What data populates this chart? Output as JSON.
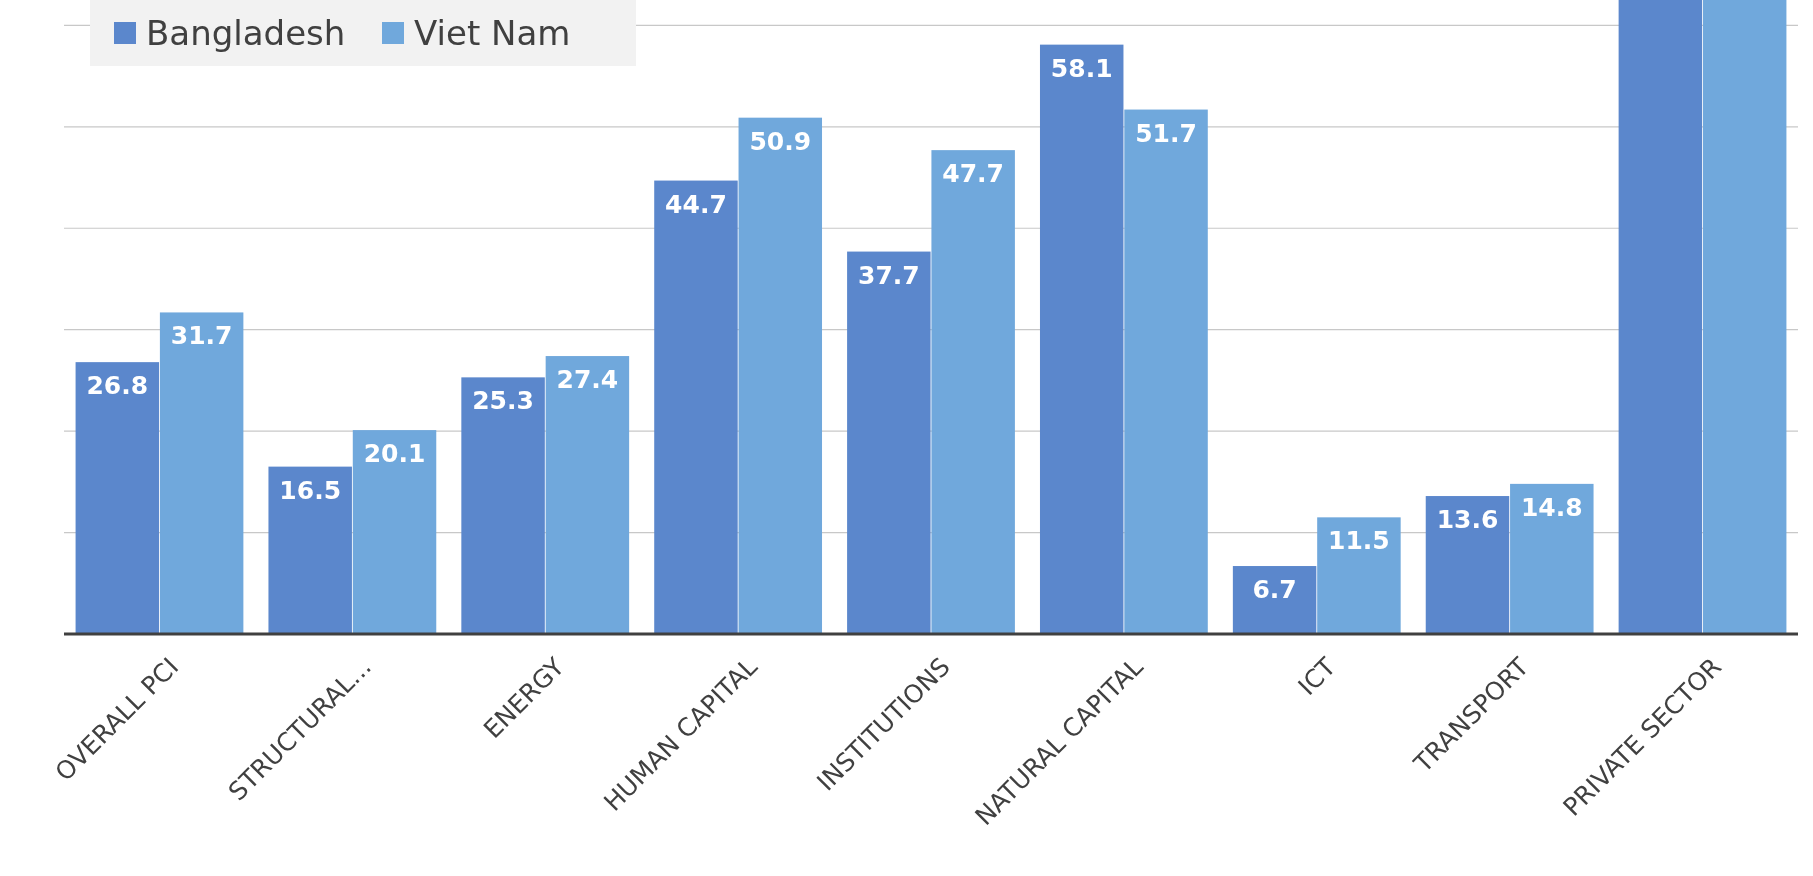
{
  "chart_data": {
    "type": "bar",
    "categories": [
      "OVERALL PCI",
      "STRUCTURAL...",
      "ENERGY",
      "HUMAN CAPITAL",
      "INSTITUTIONS",
      "NATURAL CAPITAL",
      "ICT",
      "TRANSPORT",
      "PRIVATE SECTOR"
    ],
    "series": [
      {
        "name": "Bangladesh",
        "color": "#5b87cc",
        "values": [
          26.8,
          16.5,
          25.3,
          44.7,
          37.7,
          58.1,
          6.7,
          13.6,
          62.5
        ],
        "value_labels": [
          "26.8",
          "16.5",
          "25.3",
          "44.7",
          "37.7",
          "58.1",
          "6.7",
          "13.6",
          null
        ]
      },
      {
        "name": "Viet Nam",
        "color": "#70a8dc",
        "values": [
          31.7,
          20.1,
          27.4,
          50.9,
          47.7,
          51.7,
          11.5,
          14.8,
          62.5
        ],
        "value_labels": [
          "31.7",
          "20.1",
          "27.4",
          "50.9",
          "47.7",
          "51.7",
          "11.5",
          "14.8",
          null
        ]
      }
    ],
    "ylim": [
      0,
      62.5
    ],
    "yticks": [
      {
        "value": 10,
        "label": null
      },
      {
        "value": 20,
        "label": null
      },
      {
        "value": 30,
        "label": null
      },
      {
        "value": 40,
        "label": null
      },
      {
        "value": 50,
        "label": null
      },
      {
        "value": 60,
        "label": null
      }
    ],
    "grid": "y",
    "legend": "top left",
    "tick_labels": "x"
  }
}
